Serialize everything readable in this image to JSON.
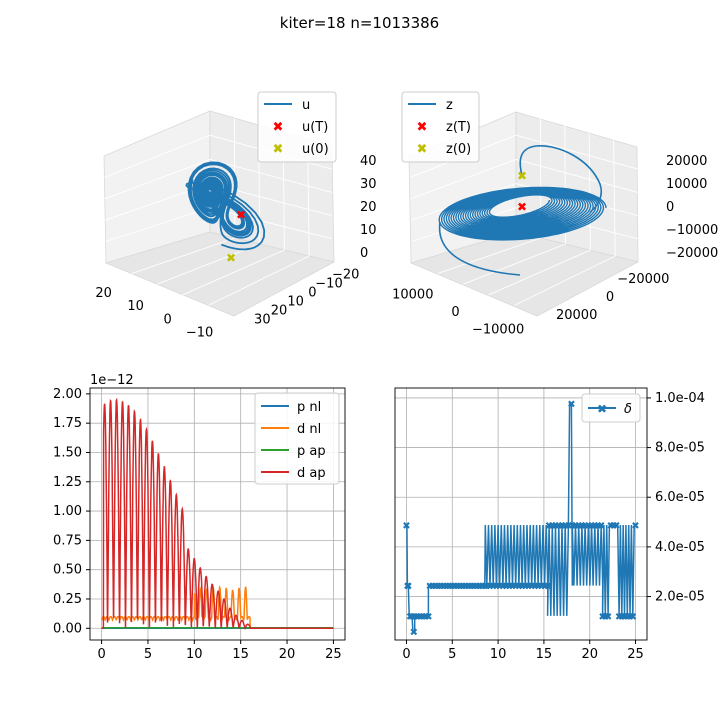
{
  "figure": {
    "suptitle": "kiter=18  n=1013386"
  },
  "colors": {
    "c0": "#1f77b4",
    "c1": "#ff7f0e",
    "c2": "#2ca02c",
    "c3": "#d62728",
    "marker_end": "#ff0000",
    "marker_start": "#bfbf00",
    "grid": "#b0b0b0"
  },
  "chart_data": [
    {
      "id": "u3d",
      "type": "line",
      "projection": "3d",
      "legend_position": "upper right",
      "legend": [
        "u",
        "u(T)",
        "u(0)"
      ],
      "x_ticks": [
        "20",
        "10",
        "0",
        "−10"
      ],
      "y_ticks": [
        "−20",
        "−10",
        "0",
        "10",
        "20",
        "30"
      ],
      "z_ticks": [
        "0",
        "10",
        "20",
        "30",
        "40"
      ],
      "xlim": [
        -20,
        20
      ],
      "ylim": [
        -25,
        30
      ],
      "zlim": [
        0,
        45
      ]
    },
    {
      "id": "z3d",
      "type": "line",
      "projection": "3d",
      "legend_position": "upper left",
      "legend": [
        "z",
        "z(T)",
        "z(0)"
      ],
      "x_ticks": [
        "10000",
        "0",
        "−10000"
      ],
      "y_ticks": [
        "−20000",
        "0",
        "20000"
      ],
      "z_ticks": [
        "−20000",
        "−10000",
        "0",
        "10000",
        "20000"
      ],
      "xlim": [
        -20000,
        20000
      ],
      "ylim": [
        -30000,
        30000
      ],
      "zlim": [
        -25000,
        25000
      ]
    },
    {
      "id": "residuals",
      "type": "line",
      "offset_text": "1e−12",
      "legend_position": "upper right",
      "series": [
        {
          "name": "p nl",
          "color": "#1f77b4",
          "values_note": ""
        },
        {
          "name": "d nl",
          "color": "#ff7f0e"
        },
        {
          "name": "p ap",
          "color": "#2ca02c"
        },
        {
          "name": "d ap",
          "color": "#d62728"
        }
      ],
      "xlim": [
        -1.25,
        26.25
      ],
      "ylim": [
        -0.1,
        2.05
      ],
      "x_ticks": [
        0,
        5,
        10,
        15,
        20,
        25
      ],
      "y_ticks": [
        "0.00",
        "0.25",
        "0.50",
        "0.75",
        "1.00",
        "1.25",
        "1.50",
        "1.75",
        "2.00"
      ],
      "y_tick_values": [
        0,
        0.25,
        0.5,
        0.75,
        1.0,
        1.25,
        1.5,
        1.75,
        2.0
      ],
      "grid": true
    },
    {
      "id": "delta",
      "type": "line",
      "marker": "X",
      "legend_position": "upper right",
      "series": [
        {
          "name": "δ",
          "color": "#1f77b4"
        }
      ],
      "xlim": [
        -1.25,
        26.25
      ],
      "ylim": [
        2.5e-06,
        0.000104
      ],
      "x_ticks": [
        0,
        5,
        10,
        15,
        20,
        25
      ],
      "y_ticks": [
        "2.0e-05",
        "4.0e-05",
        "6.0e-05",
        "8.0e-05",
        "1.0e-04"
      ],
      "y_tick_values": [
        2e-05,
        4e-05,
        6e-05,
        8e-05,
        0.0001
      ],
      "levels": [
        6e-06,
        1.22e-05,
        2.44e-05,
        4.88e-05,
        9.77e-05
      ],
      "grid": true
    }
  ]
}
